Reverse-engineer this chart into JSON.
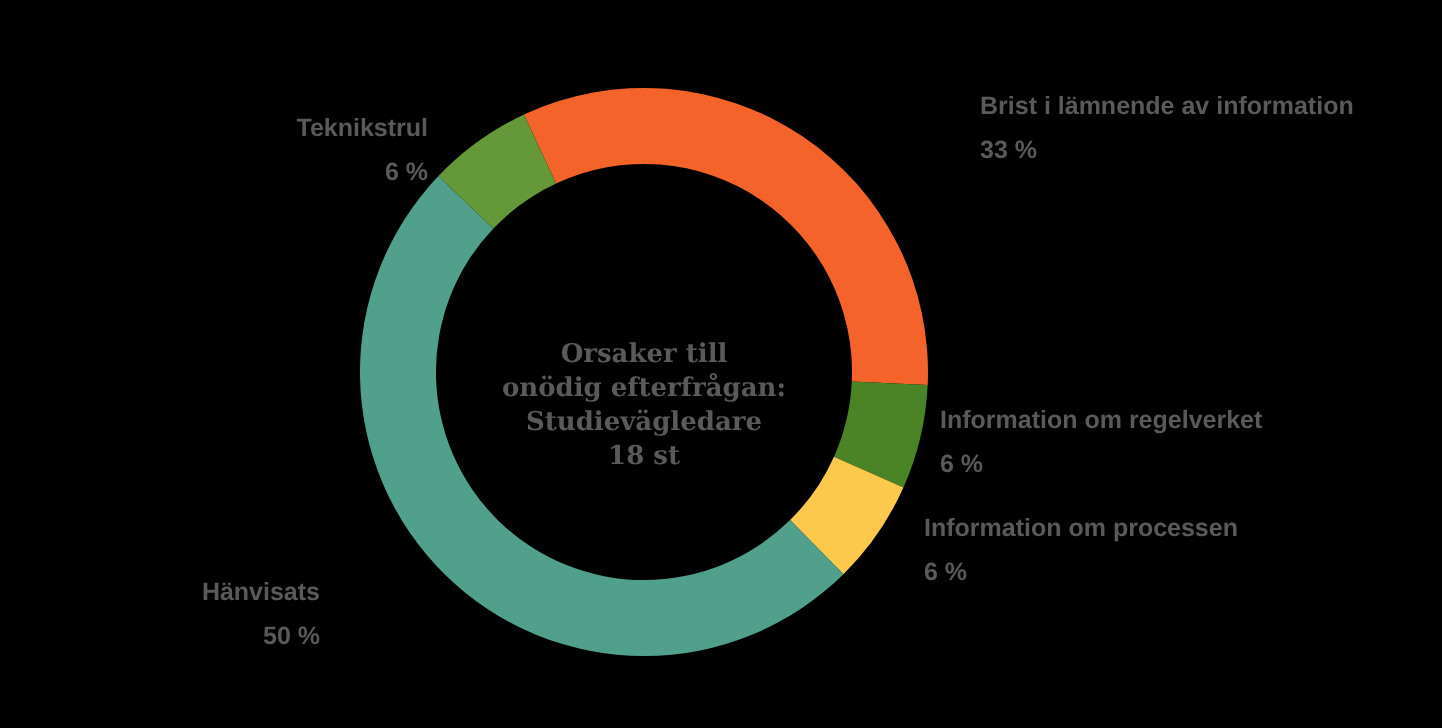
{
  "chart_data": {
    "type": "donut",
    "title": "Orsaker till\nonödig efterfrågan:\nStudievägledare\n18 st",
    "categories": [
      "Brist i lämnende av information",
      "Information om regelverket",
      "Information om processen",
      "Hänvisats",
      "Teknikstrul"
    ],
    "values": [
      33,
      6,
      6,
      50,
      6
    ],
    "value_labels": [
      "33 %",
      "6 %",
      "6 %",
      "50 %",
      "6 %"
    ],
    "colors": [
      "#f4632a",
      "#4a8426",
      "#fdc94d",
      "#50a08c",
      "#659838"
    ]
  }
}
